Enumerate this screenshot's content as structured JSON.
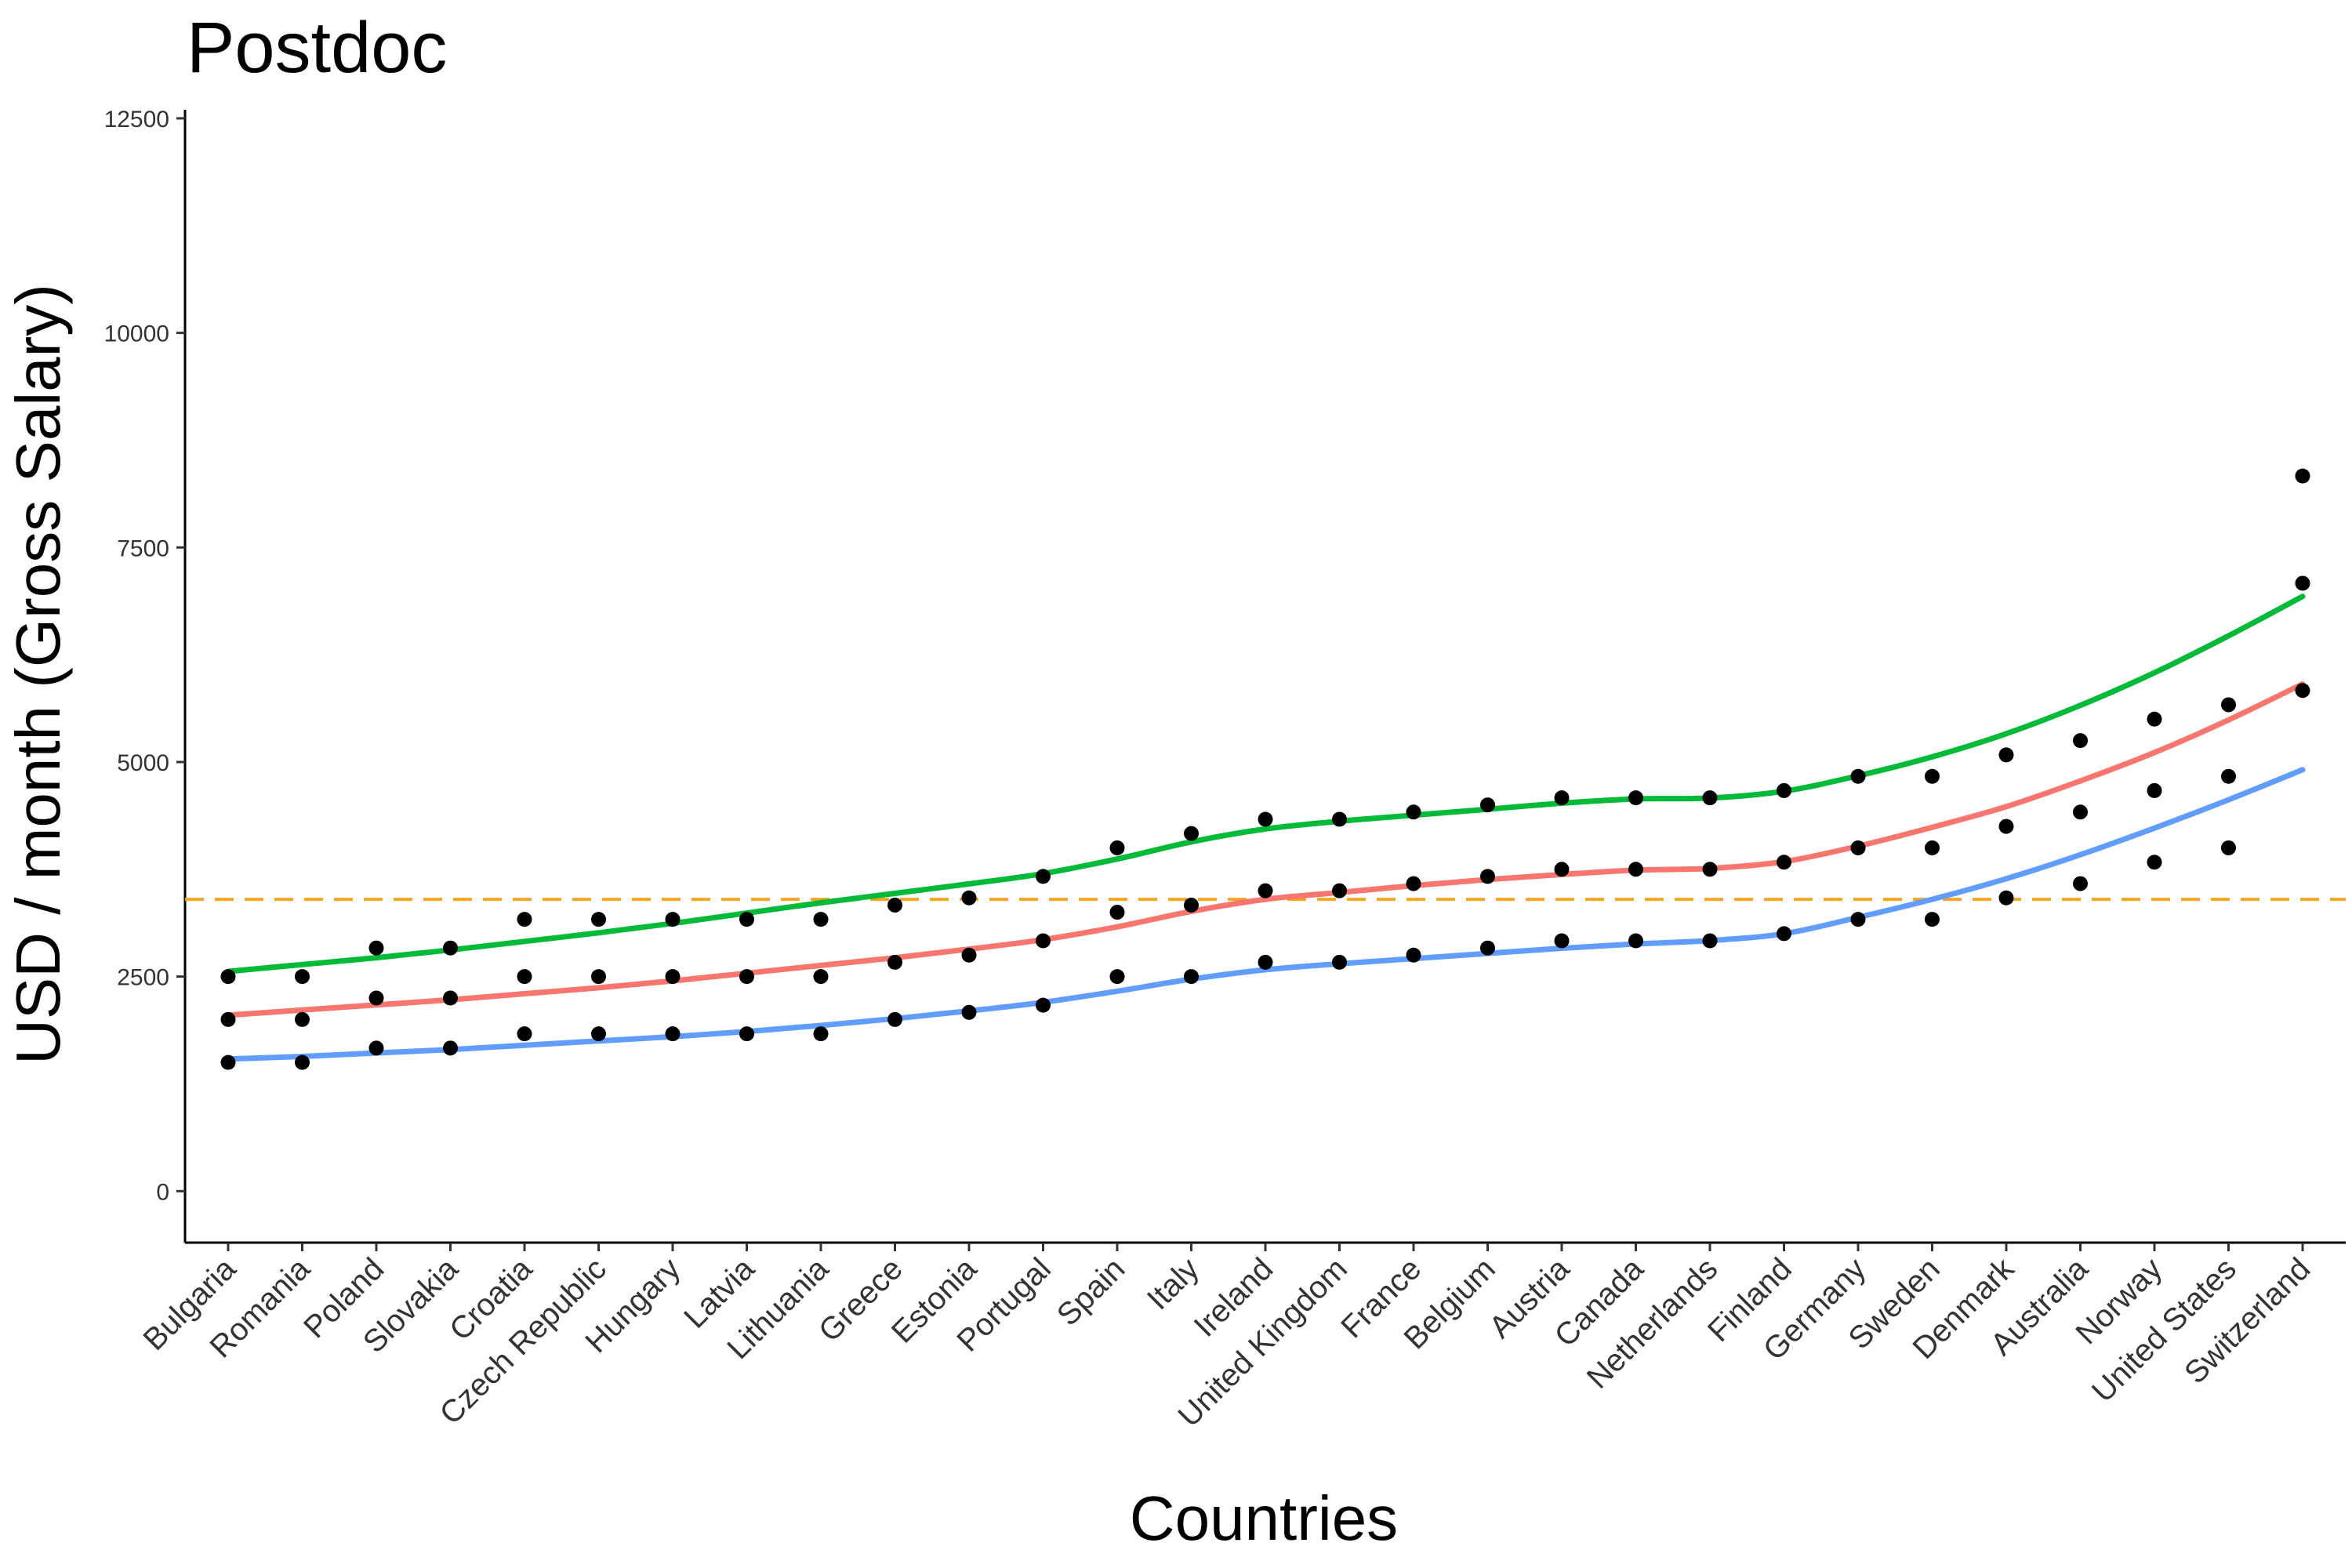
{
  "chart_data": {
    "type": "scatter",
    "title": "Postdoc",
    "xlabel": "Countries",
    "ylabel": "USD / month (Gross Salary)",
    "ylim": [
      -600,
      12600
    ],
    "yticks": [
      0,
      2500,
      5000,
      7500,
      10000,
      12500
    ],
    "grid": false,
    "categories": [
      "Bulgaria",
      "Romania",
      "Poland",
      "Slovakia",
      "Croatia",
      "Czech Republic",
      "Hungary",
      "Latvia",
      "Lithuania",
      "Greece",
      "Estonia",
      "Portugal",
      "Spain",
      "Italy",
      "Ireland",
      "United Kingdom",
      "France",
      "Belgium",
      "Austria",
      "Canada",
      "Netherlands",
      "Finland",
      "Germany",
      "Sweden",
      "Denmark",
      "Australia",
      "Norway",
      "United States",
      "Switzerland"
    ],
    "points": {
      "low": [
        1500,
        1500,
        1667,
        1667,
        1833,
        1833,
        1833,
        1833,
        1833,
        2000,
        2083,
        2167,
        2500,
        2500,
        2667,
        2667,
        2750,
        2833,
        2917,
        2917,
        2917,
        3000,
        3167,
        3167,
        3417,
        3583,
        3833,
        4000,
        5833
      ],
      "mid": [
        2000,
        2000,
        2250,
        2250,
        2500,
        2500,
        2500,
        2500,
        2500,
        2667,
        2750,
        2917,
        3250,
        3333,
        3500,
        3500,
        3583,
        3667,
        3750,
        3750,
        3750,
        3833,
        4000,
        4000,
        4250,
        4417,
        4667,
        4833,
        7083
      ],
      "high": [
        2500,
        2500,
        2833,
        2833,
        3167,
        3167,
        3167,
        3167,
        3167,
        3333,
        3417,
        3667,
        4000,
        4167,
        4333,
        4333,
        4417,
        4500,
        4583,
        4583,
        4583,
        4667,
        4833,
        4833,
        5083,
        5250,
        5500,
        5667,
        8333
      ]
    },
    "series": [
      {
        "color": "#00ba38",
        "values": [
          2560,
          2640,
          2720,
          2810,
          2910,
          3010,
          3120,
          3240,
          3360,
          3470,
          3580,
          3700,
          3870,
          4070,
          4220,
          4310,
          4380,
          4450,
          4520,
          4570,
          4580,
          4660,
          4840,
          5060,
          5330,
          5660,
          6040,
          6470,
          6930
        ]
      },
      {
        "color": "#f8766d",
        "values": [
          2050,
          2110,
          2170,
          2230,
          2300,
          2370,
          2450,
          2540,
          2630,
          2720,
          2820,
          2930,
          3080,
          3260,
          3400,
          3480,
          3560,
          3630,
          3690,
          3740,
          3760,
          3840,
          4020,
          4240,
          4480,
          4780,
          5110,
          5490,
          5910
        ]
      },
      {
        "color": "#619cff",
        "values": [
          1540,
          1570,
          1610,
          1650,
          1700,
          1750,
          1800,
          1860,
          1930,
          2010,
          2100,
          2200,
          2330,
          2470,
          2580,
          2650,
          2710,
          2770,
          2830,
          2880,
          2920,
          3000,
          3190,
          3400,
          3640,
          3920,
          4230,
          4560,
          4910
        ]
      }
    ],
    "reference_line": {
      "value": 3400,
      "color": "#f5a623",
      "style": "dashed"
    }
  }
}
